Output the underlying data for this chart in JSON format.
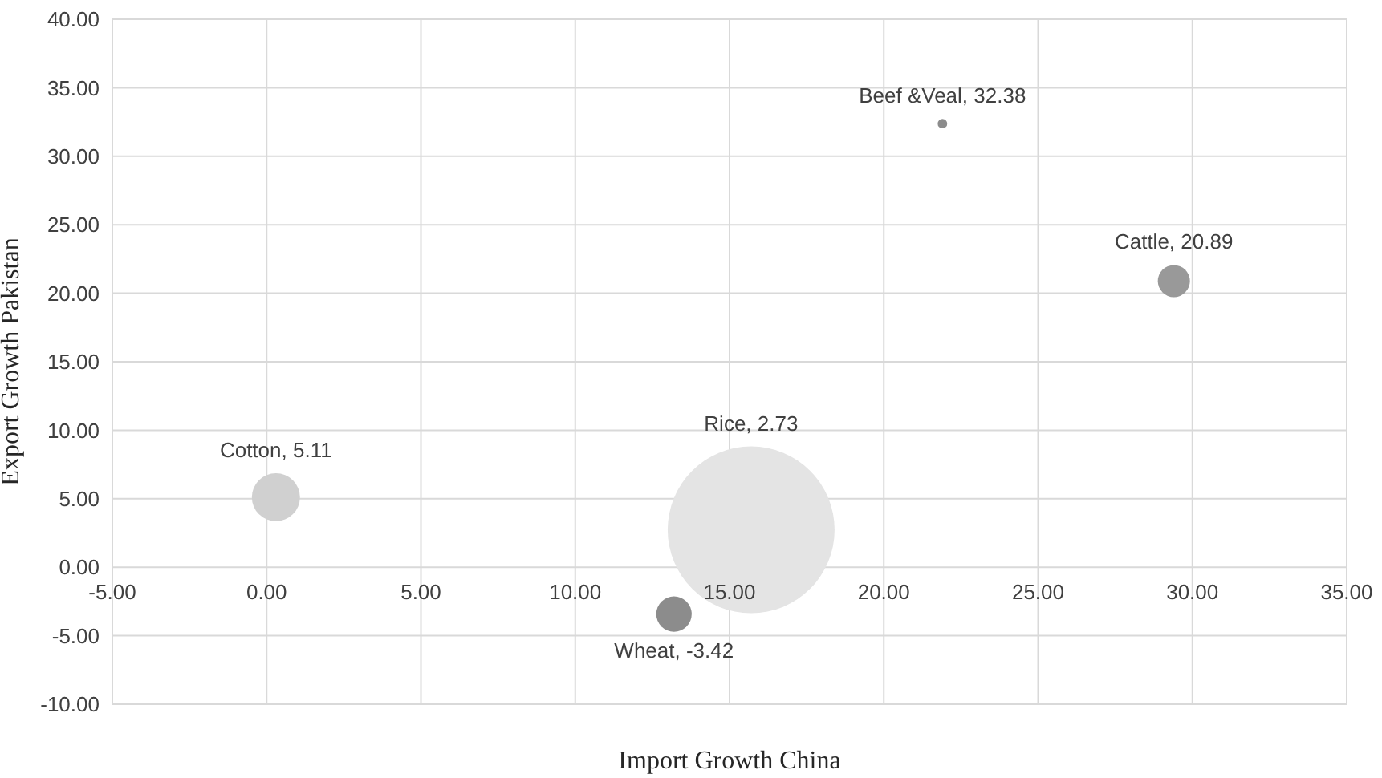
{
  "chart_data": {
    "type": "bubble",
    "xlabel": "Import Growth China",
    "ylabel": "Export Growth Pakistan",
    "x": [
      0.3,
      13.2,
      15.7,
      21.9,
      29.4
    ],
    "values": [
      5.11,
      -3.42,
      2.73,
      32.38,
      20.89
    ],
    "sizes": [
      0.083,
      0.045,
      1,
      0.0033,
      0.037
    ],
    "colors": [
      "#d0d0d0",
      "#8c8c8c",
      "#e4e4e4",
      "#8c8c8c",
      "#999999"
    ],
    "value_labels": [
      "Cotton, 5.11",
      "Wheat, -3.42",
      "Rice, 2.73",
      "Beef &Veal, 32.38",
      "Cattle, 20.89"
    ],
    "xlim": [
      -5,
      35
    ],
    "xticks": [
      {
        "value": -5,
        "label": "-5.00"
      },
      {
        "value": 0,
        "label": "0.00"
      },
      {
        "value": 5,
        "label": "5.00"
      },
      {
        "value": 10,
        "label": "10.00"
      },
      {
        "value": 15,
        "label": "15.00"
      },
      {
        "value": 20,
        "label": "20.00"
      },
      {
        "value": 25,
        "label": "25.00"
      },
      {
        "value": 30,
        "label": "30.00"
      },
      {
        "value": 35,
        "label": "35.00"
      }
    ],
    "ylim": [
      -10,
      40
    ],
    "yticks": [
      {
        "value": -10,
        "label": "-10.00"
      },
      {
        "value": -5,
        "label": "-5.00"
      },
      {
        "value": 0,
        "label": "0.00"
      },
      {
        "value": 5,
        "label": "5.00"
      },
      {
        "value": 10,
        "label": "10.00"
      },
      {
        "value": 15,
        "label": "15.00"
      },
      {
        "value": 20,
        "label": "20.00"
      },
      {
        "value": 25,
        "label": "25.00"
      },
      {
        "value": 30,
        "label": "30.00"
      },
      {
        "value": 35,
        "label": "35.00"
      },
      {
        "value": 40,
        "label": "40.00"
      }
    ],
    "grid": true,
    "legend": false
  }
}
